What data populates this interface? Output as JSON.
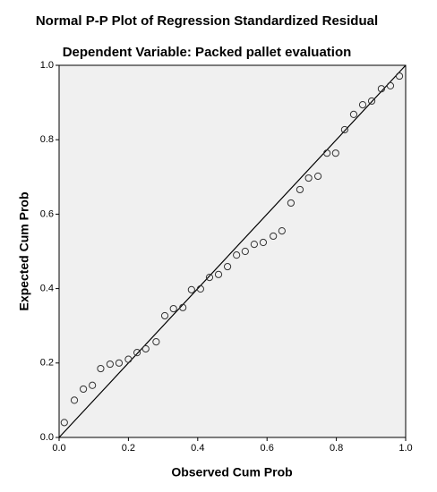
{
  "chart_data": {
    "type": "scatter",
    "title": "Normal P-P Plot of Regression Standardized Residual",
    "subtitle": "Dependent Variable: Packed pallet evaluation",
    "x_label": "Observed Cum Prob",
    "y_label": "Expected Cum Prob",
    "x": [
      0.015,
      0.044,
      0.07,
      0.096,
      0.12,
      0.147,
      0.173,
      0.2,
      0.225,
      0.25,
      0.28,
      0.305,
      0.33,
      0.357,
      0.382,
      0.408,
      0.434,
      0.46,
      0.486,
      0.512,
      0.537,
      0.563,
      0.589,
      0.618,
      0.643,
      0.669,
      0.695,
      0.72,
      0.747,
      0.773,
      0.798,
      0.824,
      0.85,
      0.876,
      0.902,
      0.93,
      0.956,
      0.982
    ],
    "y": [
      0.04,
      0.1,
      0.13,
      0.14,
      0.185,
      0.197,
      0.2,
      0.21,
      0.228,
      0.238,
      0.257,
      0.327,
      0.346,
      0.349,
      0.397,
      0.399,
      0.43,
      0.438,
      0.459,
      0.49,
      0.5,
      0.519,
      0.524,
      0.541,
      0.555,
      0.63,
      0.666,
      0.697,
      0.702,
      0.764,
      0.764,
      0.827,
      0.868,
      0.894,
      0.904,
      0.937,
      0.945,
      0.971
    ],
    "xlim": [
      0,
      1
    ],
    "ylim": [
      0,
      1
    ],
    "xticks": [
      {
        "value": 0,
        "label": "0.0"
      },
      0.2,
      0.4,
      0.6,
      0.8,
      {
        "value": 1,
        "label": "1.0"
      }
    ],
    "yticks": [
      {
        "value": 0,
        "label": "0.0"
      },
      0.2,
      0.4,
      0.6,
      0.8,
      {
        "value": 1,
        "label": "1.0"
      }
    ],
    "reference_line": true,
    "color": "#333333",
    "background": "#f0f0f0"
  }
}
